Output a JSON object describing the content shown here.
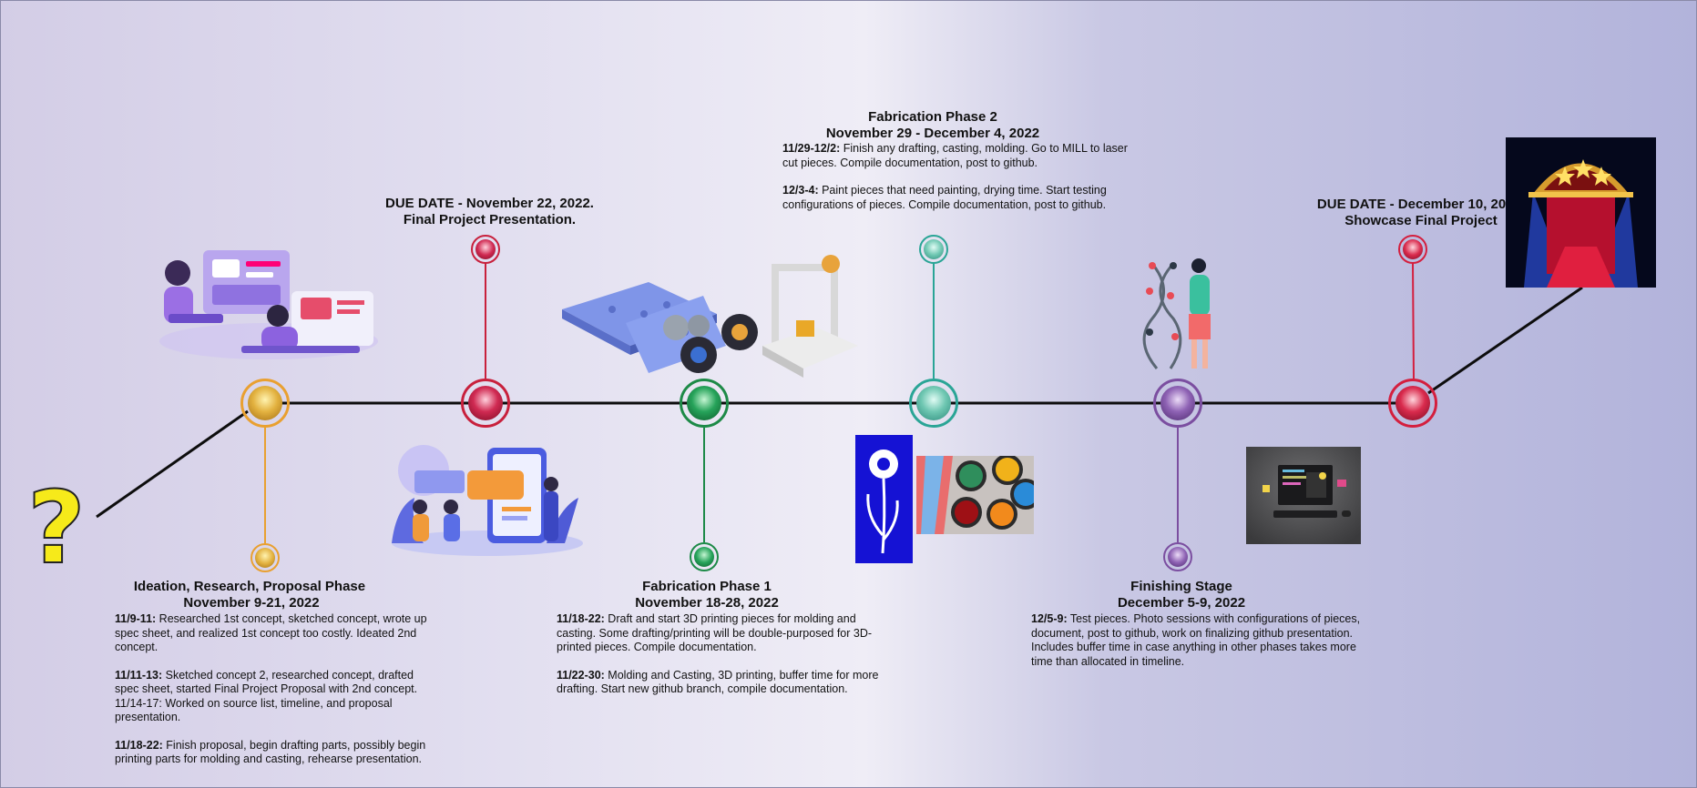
{
  "colors": {
    "gold": "#e9a030",
    "crimson": "#c8203c",
    "green": "#1d8a47",
    "teal": "#2aa596",
    "purple": "#7b4ea0",
    "red": "#d41f3e",
    "line": "#0d0d0d"
  },
  "question_icon": "question-mark-icon",
  "phases": {
    "ideation": {
      "title": "Ideation, Research, Proposal Phase",
      "dates": "November 9-21, 2022",
      "entries": [
        {
          "label": "11/9-11:",
          "text": " Researched 1st concept, sketched concept, wrote up spec sheet, and realized 1st concept too costly. Ideated 2nd concept."
        },
        {
          "label": "11/11-13:",
          "text": " Sketched concept 2, researched concept, drafted spec sheet, started Final Project Proposal with 2nd concept. 11/14-17: Worked on source list, timeline, and proposal presentation."
        },
        {
          "label": "11/18-22:",
          "text": " Finish proposal, begin drafting parts, possibly begin printing parts for molding and casting, rehearse presentation."
        }
      ]
    },
    "due1": {
      "title": "DUE DATE - November 22, 2022.",
      "subtitle": "Final Project Presentation."
    },
    "fab1": {
      "title": "Fabrication Phase 1",
      "dates": "November 18-28, 2022",
      "entries": [
        {
          "label": "11/18-22:",
          "text": " Draft and start 3D printing pieces for molding and casting. Some drafting/printing will be double-purposed for 3D-printed pieces. Compile documentation."
        },
        {
          "label": "11/22-30:",
          "text": " Molding and Casting, 3D printing, buffer time for more drafting. Start new github branch, compile documentation."
        }
      ]
    },
    "fab2": {
      "title": "Fabrication Phase 2",
      "dates": "November 29 - December 4, 2022",
      "entries": [
        {
          "label": "11/29-12/2:",
          "text": " Finish any drafting, casting, molding. Go to MILL to laser cut pieces. Compile documentation, post to github."
        },
        {
          "label": "12/3-4:",
          "text": " Paint pieces that need painting, drying time. Start testing configurations of pieces. Compile documentation, post to github."
        }
      ]
    },
    "finishing": {
      "title": "Finishing Stage",
      "dates": "December 5-9, 2022",
      "entries": [
        {
          "label": "12/5-9:",
          "text": " Test pieces. Photo sessions with configurations of pieces, document, post to github, work on finalizing github presentation. Includes buffer time in case anything in other phases takes more time than allocated in timeline."
        }
      ]
    },
    "due2": {
      "title": "DUE DATE - December 10, 2022.",
      "subtitle": "Showcase Final Project"
    }
  }
}
